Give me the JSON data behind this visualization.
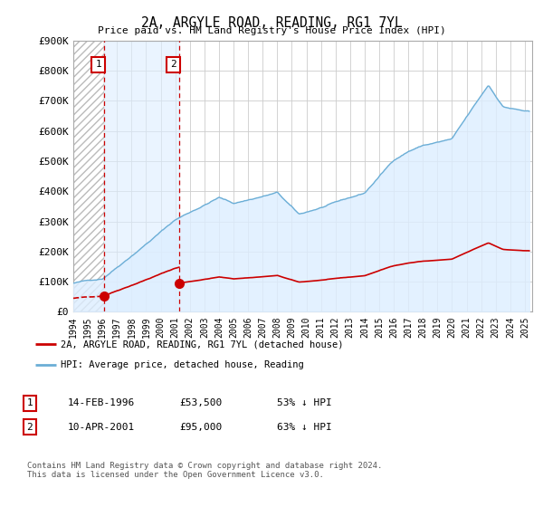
{
  "title": "2A, ARGYLE ROAD, READING, RG1 7YL",
  "subtitle": "Price paid vs. HM Land Registry's House Price Index (HPI)",
  "ylim": [
    0,
    900000
  ],
  "yticks": [
    0,
    100000,
    200000,
    300000,
    400000,
    500000,
    600000,
    700000,
    800000,
    900000
  ],
  "ytick_labels": [
    "£0",
    "£100K",
    "£200K",
    "£300K",
    "£400K",
    "£500K",
    "£600K",
    "£700K",
    "£800K",
    "£900K"
  ],
  "hpi_color": "#6baed6",
  "sale_color": "#cc0000",
  "hpi_fill_color": "#ddeeff",
  "legend_label_red": "2A, ARGYLE ROAD, READING, RG1 7YL (detached house)",
  "legend_label_blue": "HPI: Average price, detached house, Reading",
  "sale1_date": 1996.12,
  "sale1_price": 53500,
  "sale2_date": 2001.28,
  "sale2_price": 95000,
  "table_row1": [
    "1",
    "14-FEB-1996",
    "£53,500",
    "53% ↓ HPI"
  ],
  "table_row2": [
    "2",
    "10-APR-2001",
    "£95,000",
    "63% ↓ HPI"
  ],
  "footer": "Contains HM Land Registry data © Crown copyright and database right 2024.\nThis data is licensed under the Open Government Licence v3.0.",
  "xmin": 1994.0,
  "xmax": 2025.5
}
